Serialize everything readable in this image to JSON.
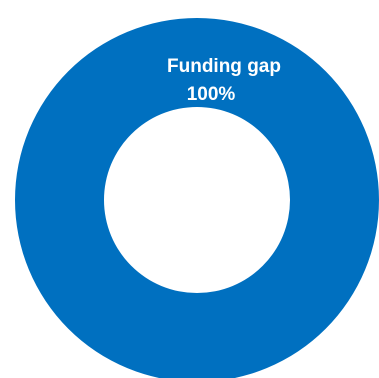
{
  "chart_data": {
    "type": "pie",
    "variant": "donut",
    "title": "",
    "slices": [
      {
        "label": "Funding gap",
        "value": 100,
        "value_label": "100%",
        "color": "#0070C0"
      }
    ],
    "legend": "none",
    "grid": false
  }
}
